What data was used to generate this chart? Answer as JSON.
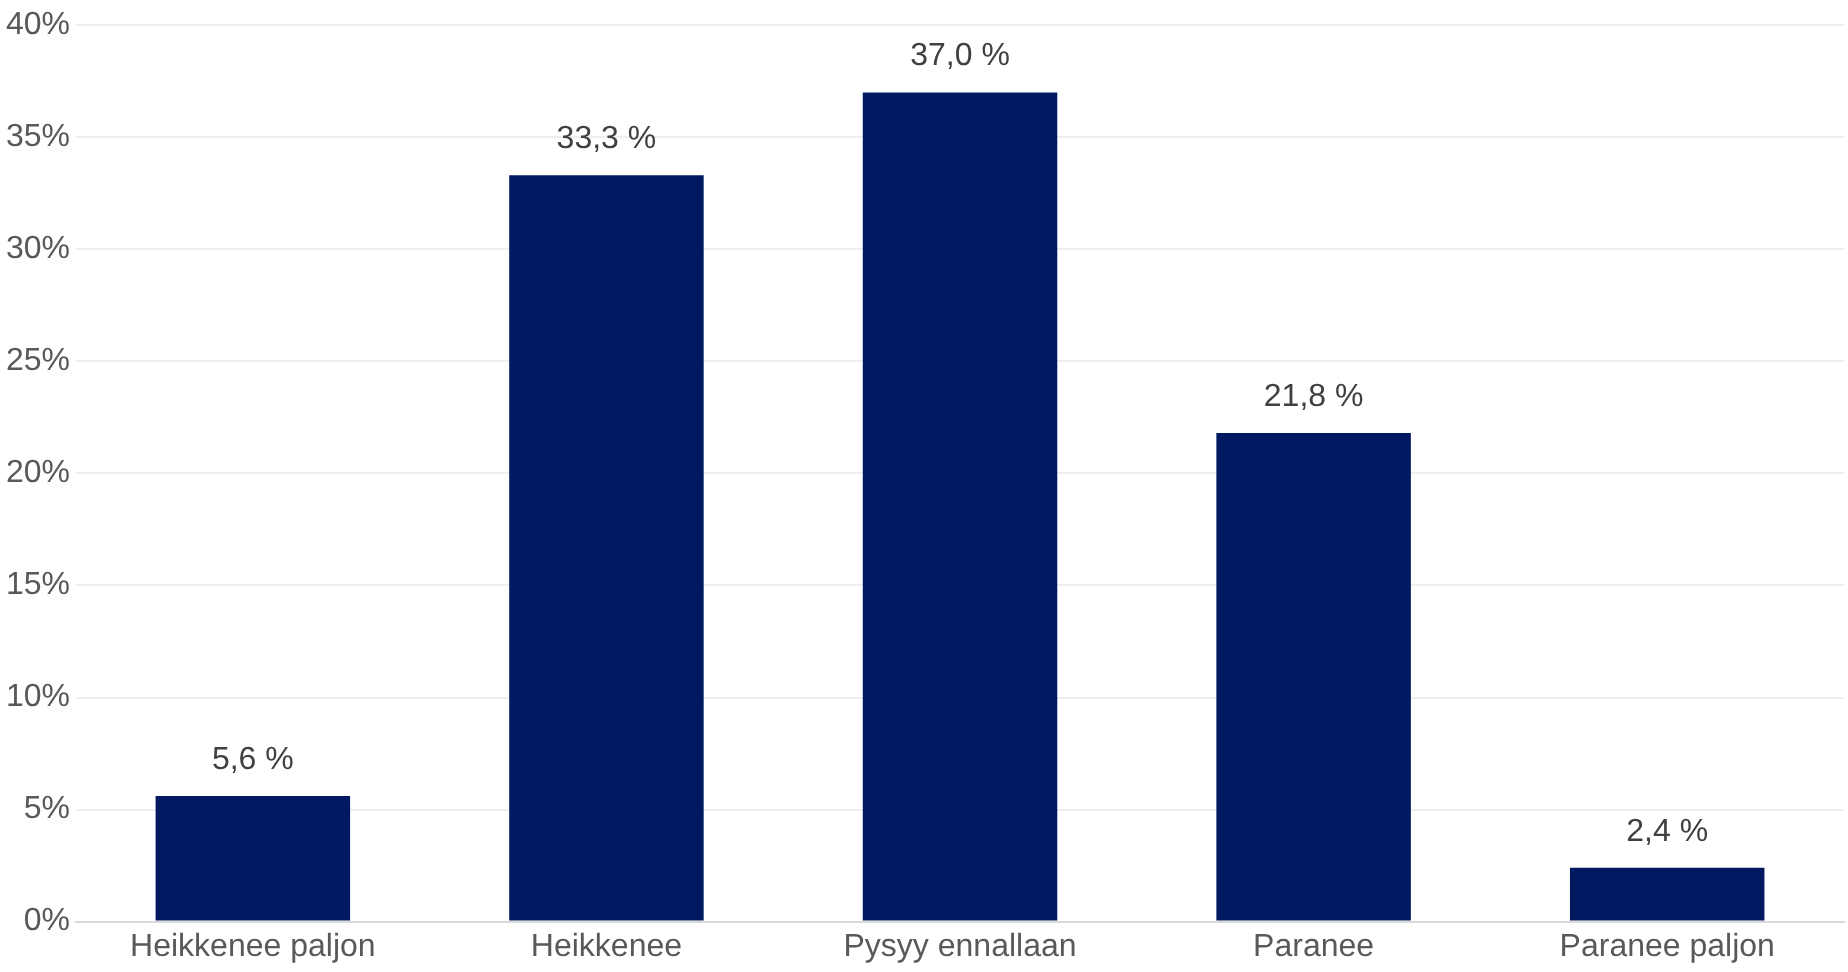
{
  "chart_data": {
    "type": "bar",
    "categories": [
      "Heikkenee paljon",
      "Heikkenee",
      "Pysyy ennallaan",
      "Paranee",
      "Paranee paljon"
    ],
    "values": [
      5.6,
      33.3,
      37.0,
      21.8,
      2.4
    ],
    "color": "#001960",
    "value_labels": [
      "5,6 %",
      "33,3 %",
      "37,0 %",
      "21,8 %",
      "2,4 %"
    ],
    "ylim": [
      0,
      40
    ],
    "yticks": [
      {
        "value": 0,
        "label": "0%"
      },
      {
        "value": 5,
        "label": "5%"
      },
      {
        "value": 10,
        "label": "10%"
      },
      {
        "value": 15,
        "label": "15%"
      },
      {
        "value": 20,
        "label": "20%"
      },
      {
        "value": 25,
        "label": "25%"
      },
      {
        "value": 30,
        "label": "30%"
      },
      {
        "value": 35,
        "label": "35%"
      },
      {
        "value": 40,
        "label": "40%"
      }
    ],
    "grid": "y",
    "legend": false
  }
}
